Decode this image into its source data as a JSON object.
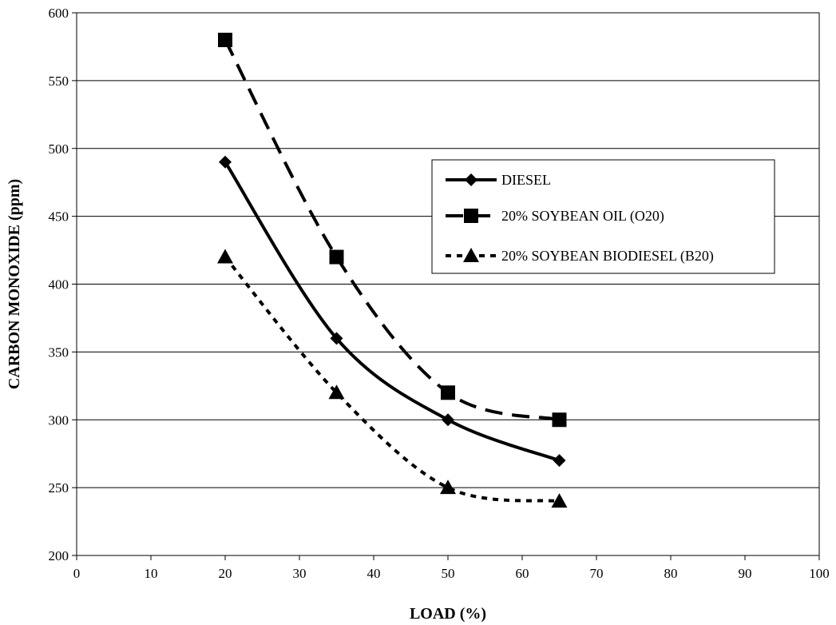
{
  "chart_data": {
    "type": "line",
    "title": "",
    "xlabel": "LOAD (%)",
    "ylabel": "CARBON MONOXIDE (ppm)",
    "xlim": [
      0,
      100
    ],
    "ylim": [
      200,
      600
    ],
    "x_ticks": [
      "0",
      "10",
      "20",
      "30",
      "40",
      "50",
      "60",
      "70",
      "80",
      "90",
      "100"
    ],
    "y_ticks": [
      "200",
      "250",
      "300",
      "350",
      "400",
      "450",
      "500",
      "550",
      "600"
    ],
    "grid": "horizontal",
    "smoothed": true,
    "legend_position": "right",
    "series": [
      {
        "name": "DIESEL",
        "marker": "diamond",
        "line_style": "solid",
        "x": [
          20,
          35,
          50,
          65
        ],
        "y": [
          490,
          360,
          300,
          270
        ]
      },
      {
        "name": "20% SOYBEAN OIL (O20)",
        "marker": "square",
        "line_style": "long-dash",
        "x": [
          20,
          35,
          50,
          65
        ],
        "y": [
          580,
          420,
          320,
          300
        ]
      },
      {
        "name": "20% SOYBEAN BIODIESEL (B20)",
        "marker": "triangle",
        "line_style": "short-dash",
        "x": [
          20,
          35,
          50,
          65
        ],
        "y": [
          420,
          320,
          250,
          240
        ]
      }
    ]
  }
}
